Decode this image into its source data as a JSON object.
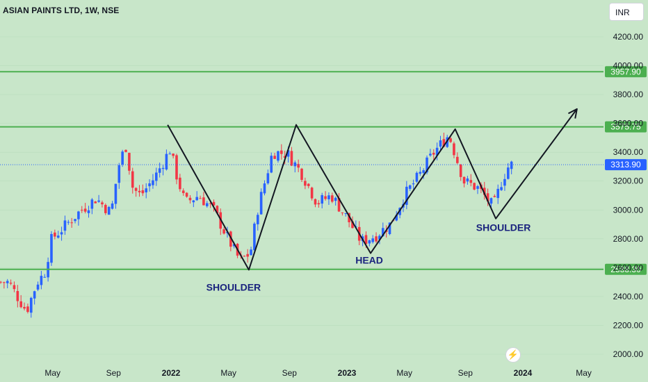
{
  "header": {
    "title": "ASIAN PAINTS LTD, 1W, NSE",
    "currency": "INR"
  },
  "colors": {
    "background": "#c8e6c9",
    "up": "#2962ff",
    "down": "#f23645",
    "level_line": "#4caf50",
    "pattern_line": "#131722",
    "last_price": "#2962ff"
  },
  "icons": {
    "logo_button": "lightning-icon"
  },
  "chart_data": {
    "type": "candlestick",
    "x_ticks": [
      "May",
      "Sep",
      "2022",
      "May",
      "Sep",
      "2023",
      "May",
      "Sep",
      "2024",
      "May"
    ],
    "y_ticks": [
      "2000.00",
      "2200.00",
      "2400.00",
      "2600.00",
      "2800.00",
      "3000.00",
      "3200.00",
      "3400.00",
      "3600.00",
      "3800.00",
      "4000.00",
      "4200.00"
    ],
    "ylim": [
      1980,
      4250
    ],
    "levels": [
      {
        "value": 3957.9,
        "label": "3957.90"
      },
      {
        "value": 3575.75,
        "label": "3575.75"
      },
      {
        "value": 2588.3,
        "label": "2588.30"
      }
    ],
    "last_price": {
      "value": 3313.9,
      "label": "3313.90"
    },
    "annotations": [
      {
        "text": "SHOULDER",
        "anchor": "left-shoulder"
      },
      {
        "text": "HEAD",
        "anchor": "head"
      },
      {
        "text": "SHOULDER",
        "anchor": "right-shoulder"
      }
    ],
    "pattern_path": [
      {
        "date": "2021-12-27",
        "price": 3590
      },
      {
        "date": "2022-06-13",
        "price": 2585
      },
      {
        "date": "2022-09-19",
        "price": 3590
      },
      {
        "date": "2023-02-20",
        "price": 2700
      },
      {
        "date": "2023-08-14",
        "price": 3560
      },
      {
        "date": "2023-11-06",
        "price": 2940
      },
      {
        "date": "2024-04-22",
        "price": 3700
      }
    ],
    "anchor_close_series": [
      [
        2021,
        2,
        2500
      ],
      [
        2021,
        2.6,
        2400
      ],
      [
        2021,
        3.3,
        2300
      ],
      [
        2021,
        4,
        2500
      ],
      [
        2021,
        4.5,
        2560
      ],
      [
        2021,
        5,
        2800
      ],
      [
        2021,
        6,
        2900
      ],
      [
        2021,
        7,
        3000
      ],
      [
        2021,
        8,
        3080
      ],
      [
        2021,
        9,
        2980
      ],
      [
        2021,
        9.5,
        3300
      ],
      [
        2021,
        10,
        3450
      ],
      [
        2021,
        10.5,
        3150
      ],
      [
        2021,
        11,
        3100
      ],
      [
        2021,
        12,
        3230
      ],
      [
        2022,
        1,
        3420
      ],
      [
        2022,
        1.5,
        3220
      ],
      [
        2022,
        2,
        3050
      ],
      [
        2022,
        3,
        3100
      ],
      [
        2022,
        4,
        3000
      ],
      [
        2022,
        5,
        2800
      ],
      [
        2022,
        5.8,
        2650
      ],
      [
        2022,
        6.5,
        2700
      ],
      [
        2022,
        7,
        3000
      ],
      [
        2022,
        8,
        3400
      ],
      [
        2022,
        9,
        3390
      ],
      [
        2022,
        10,
        3250
      ],
      [
        2022,
        11,
        3050
      ],
      [
        2022,
        12,
        3100
      ],
      [
        2023,
        1,
        2950
      ],
      [
        2023,
        2,
        2780
      ],
      [
        2023,
        3,
        2820
      ],
      [
        2023,
        4,
        2900
      ],
      [
        2023,
        5,
        3100
      ],
      [
        2023,
        6,
        3240
      ],
      [
        2023,
        7,
        3400
      ],
      [
        2023,
        8,
        3520
      ],
      [
        2023,
        9,
        3200
      ],
      [
        2023,
        10,
        3150
      ],
      [
        2023,
        11,
        3020
      ],
      [
        2023,
        11.6,
        3210
      ],
      [
        2023,
        12.1,
        3314
      ]
    ]
  }
}
